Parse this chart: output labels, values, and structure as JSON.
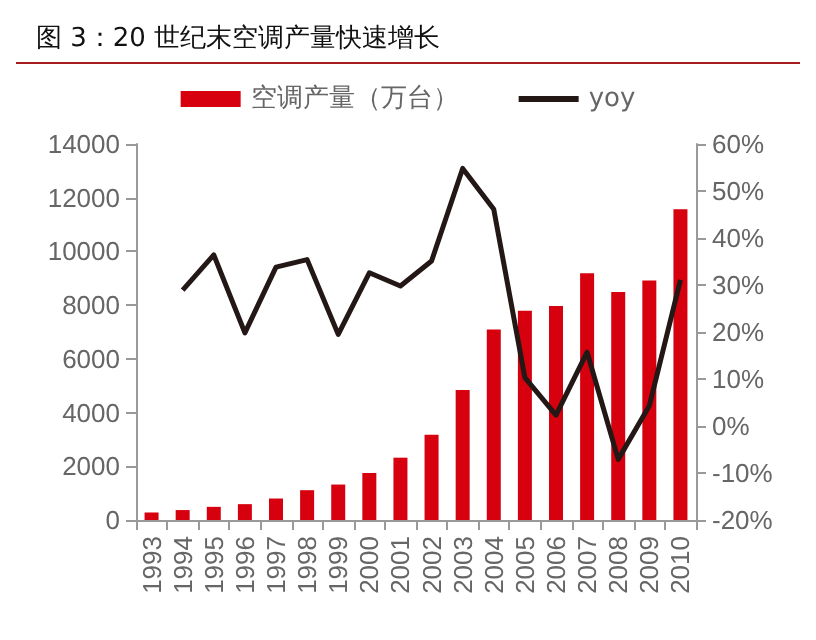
{
  "chart_data": {
    "type": "bar",
    "title": "图 3：20 世纪末空调产量快速增长",
    "categories": [
      "1993",
      "1994",
      "1995",
      "1996",
      "1997",
      "1998",
      "1999",
      "2000",
      "2001",
      "2002",
      "2003",
      "2004",
      "2005",
      "2006",
      "2007",
      "2008",
      "2009",
      "2010"
    ],
    "series": [
      {
        "name": "空调产量（万台）",
        "color": "#d7000f",
        "values": [
          280,
          370,
          490,
          590,
          800,
          1110,
          1320,
          1750,
          2320,
          3170,
          4840,
          7090,
          7790,
          7970,
          9190,
          8490,
          8920,
          11570
        ]
      },
      {
        "name": "yoy",
        "type": "line",
        "axis": "y2",
        "color": "#231815",
        "values": [
          null,
          28.9,
          36.4,
          19.8,
          33.8,
          35.4,
          19.5,
          32.6,
          29.8,
          35.1,
          54.8,
          46.1,
          10.3,
          2.3,
          15.7,
          -7.1,
          4.3,
          31.1
        ]
      }
    ],
    "ylim": [
      0,
      14000
    ],
    "yticks": [
      0,
      2000,
      4000,
      6000,
      8000,
      10000,
      12000,
      14000
    ],
    "y2lim": [
      -20,
      60
    ],
    "y2ticks": [
      {
        "value": -20,
        "label": "-20%"
      },
      {
        "value": -10,
        "label": "-10%"
      },
      {
        "value": 0,
        "label": "0%"
      },
      {
        "value": 10,
        "label": "10%"
      },
      {
        "value": 20,
        "label": "20%"
      },
      {
        "value": 30,
        "label": "30%"
      },
      {
        "value": 40,
        "label": "40%"
      },
      {
        "value": 50,
        "label": "50%"
      },
      {
        "value": 60,
        "label": "60%"
      }
    ],
    "grid": false,
    "legend": "top",
    "marker": "none",
    "line_style": "solid"
  }
}
